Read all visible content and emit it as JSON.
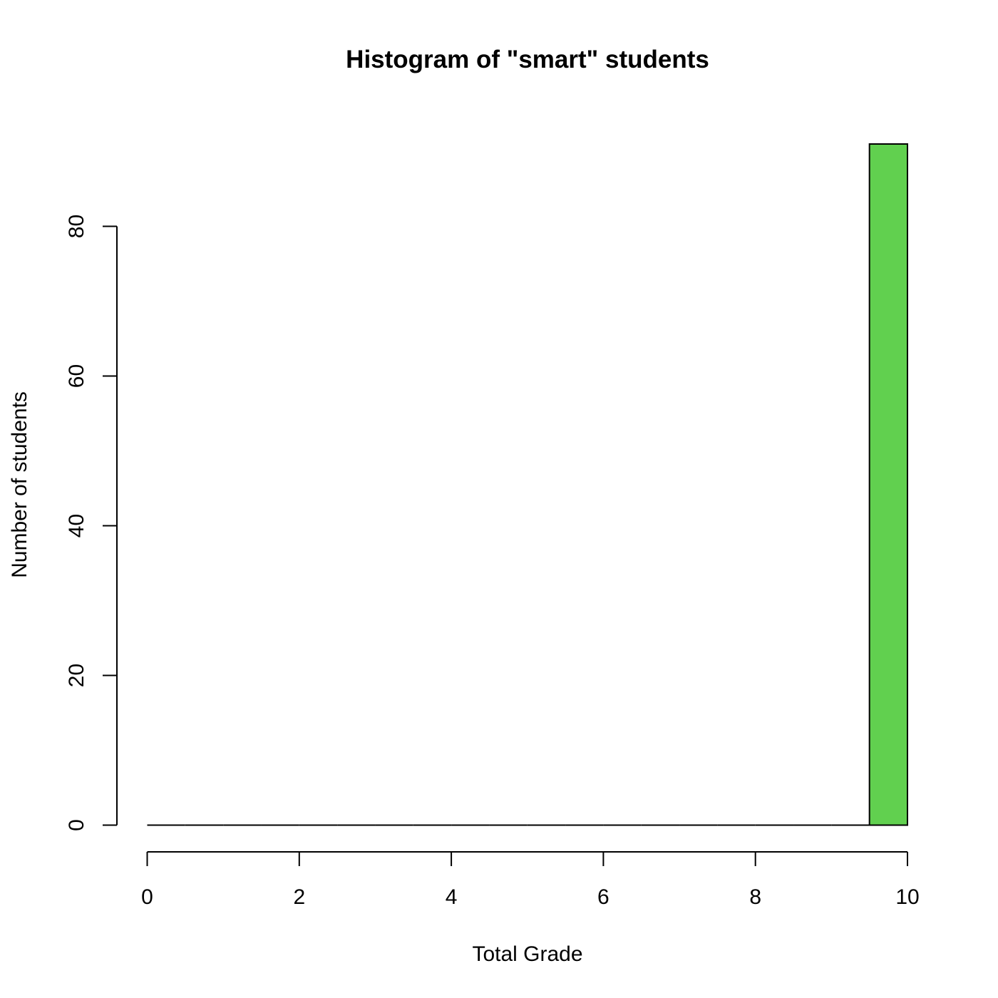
{
  "chart_data": {
    "type": "bar",
    "title": "Histogram of \"smart\" students",
    "xlabel": "Total Grade",
    "ylabel": "Number of students",
    "xlim": [
      0,
      10
    ],
    "ylim": [
      0,
      91
    ],
    "x_ticks": [
      0,
      2,
      4,
      6,
      8,
      10
    ],
    "y_ticks": [
      0,
      20,
      40,
      60,
      80
    ],
    "bins": [
      {
        "start": 0.0,
        "end": 0.5,
        "count": 0
      },
      {
        "start": 0.5,
        "end": 1.0,
        "count": 0
      },
      {
        "start": 1.0,
        "end": 1.5,
        "count": 0
      },
      {
        "start": 1.5,
        "end": 2.0,
        "count": 0
      },
      {
        "start": 2.0,
        "end": 2.5,
        "count": 0
      },
      {
        "start": 2.5,
        "end": 3.0,
        "count": 0
      },
      {
        "start": 3.0,
        "end": 3.5,
        "count": 0
      },
      {
        "start": 3.5,
        "end": 4.0,
        "count": 0
      },
      {
        "start": 4.0,
        "end": 4.5,
        "count": 0
      },
      {
        "start": 4.5,
        "end": 5.0,
        "count": 0
      },
      {
        "start": 5.0,
        "end": 5.5,
        "count": 0
      },
      {
        "start": 5.5,
        "end": 6.0,
        "count": 0
      },
      {
        "start": 6.0,
        "end": 6.5,
        "count": 0
      },
      {
        "start": 6.5,
        "end": 7.0,
        "count": 0
      },
      {
        "start": 7.0,
        "end": 7.5,
        "count": 0
      },
      {
        "start": 7.5,
        "end": 8.0,
        "count": 0
      },
      {
        "start": 8.0,
        "end": 8.5,
        "count": 0
      },
      {
        "start": 8.5,
        "end": 9.0,
        "count": 0
      },
      {
        "start": 9.0,
        "end": 9.5,
        "count": 0
      },
      {
        "start": 9.5,
        "end": 10.0,
        "count": 91
      }
    ],
    "bar_color": "#61D04F",
    "grid": false,
    "legend": "none"
  }
}
